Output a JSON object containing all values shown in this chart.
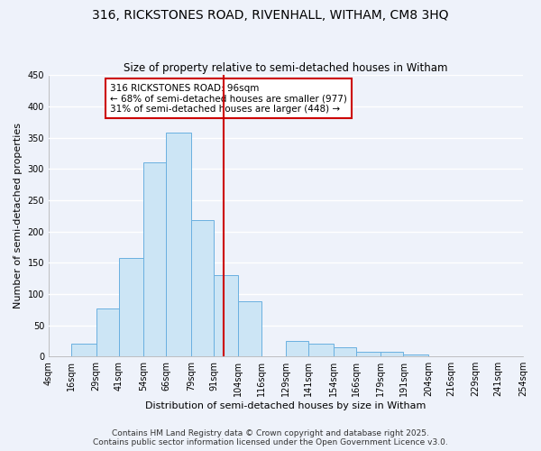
{
  "title": "316, RICKSTONES ROAD, RIVENHALL, WITHAM, CM8 3HQ",
  "subtitle": "Size of property relative to semi-detached houses in Witham",
  "xlabel": "Distribution of semi-detached houses by size in Witham",
  "ylabel": "Number of semi-detached properties",
  "bin_edges": [
    4,
    16,
    29,
    41,
    54,
    66,
    79,
    91,
    104,
    116,
    129,
    141,
    154,
    166,
    179,
    191,
    204,
    216,
    229,
    241,
    254
  ],
  "counts": [
    0,
    20,
    77,
    157,
    310,
    358,
    218,
    130,
    88,
    0,
    25,
    20,
    15,
    8,
    7,
    3,
    0,
    0,
    0,
    0
  ],
  "bar_fill": "#cce5f5",
  "bar_edge": "#6ab0e0",
  "vline_x": 96,
  "vline_color": "#cc0000",
  "annotation_title": "316 RICKSTONES ROAD: 96sqm",
  "annotation_line1": "← 68% of semi-detached houses are smaller (977)",
  "annotation_line2": "31% of semi-detached houses are larger (448) →",
  "ylim": [
    0,
    450
  ],
  "yticks": [
    0,
    50,
    100,
    150,
    200,
    250,
    300,
    350,
    400,
    450
  ],
  "tick_labels": [
    "4sqm",
    "16sqm",
    "29sqm",
    "41sqm",
    "54sqm",
    "66sqm",
    "79sqm",
    "91sqm",
    "104sqm",
    "116sqm",
    "129sqm",
    "141sqm",
    "154sqm",
    "166sqm",
    "179sqm",
    "191sqm",
    "204sqm",
    "216sqm",
    "229sqm",
    "241sqm",
    "254sqm"
  ],
  "footer1": "Contains HM Land Registry data © Crown copyright and database right 2025.",
  "footer2": "Contains public sector information licensed under the Open Government Licence v3.0.",
  "bg_color": "#eef2fa",
  "grid_color": "#ffffff",
  "title_fontsize": 10,
  "subtitle_fontsize": 8.5,
  "axis_label_fontsize": 8,
  "tick_fontsize": 7,
  "footer_fontsize": 6.5,
  "ann_fontsize": 7.5
}
